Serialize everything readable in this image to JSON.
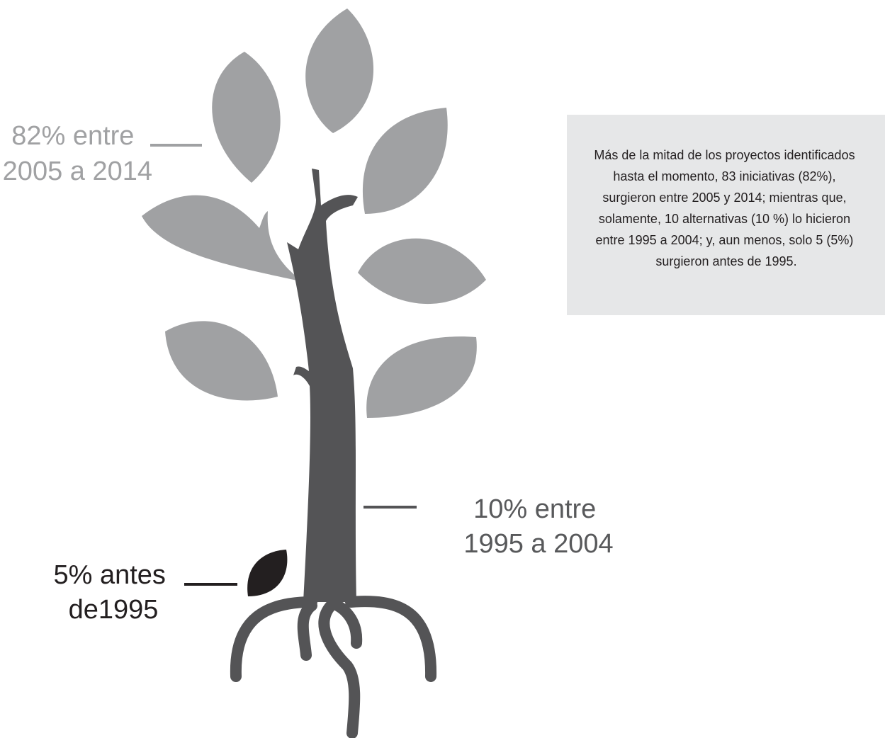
{
  "labels": [
    {
      "lines": [
        "82% entre",
        "2005 a 2014"
      ]
    },
    {
      "lines": [
        "10% entre",
        "1995 a 2004"
      ]
    },
    {
      "lines": [
        "5% antes",
        "de1995"
      ]
    }
  ],
  "note": {
    "lines": [
      "Más de la mitad de los proyectos identificados",
      "hasta el momento, 83 iniciativas (82%),",
      "surgieron entre 2005 y 2014; mientras que,",
      "solamente, 10 alternativas (10 %) lo hicieron",
      "entre 1995 a 2004; y, aun menos, solo 5 (5%)",
      "surgieron antes de 1995."
    ]
  }
}
